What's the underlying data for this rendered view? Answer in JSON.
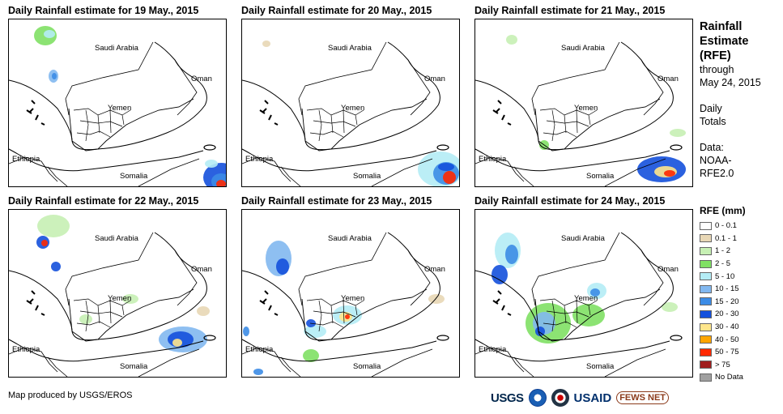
{
  "panels": [
    {
      "title": "Daily Rainfall estimate for 19 May., 2015"
    },
    {
      "title": "Daily Rainfall estimate for 20 May., 2015"
    },
    {
      "title": "Daily Rainfall estimate for 21 May., 2015"
    },
    {
      "title": "Daily Rainfall estimate for 22 May., 2015"
    },
    {
      "title": "Daily Rainfall estimate for 23 May., 2015"
    },
    {
      "title": "Daily Rainfall estimate for 24 May., 2015"
    }
  ],
  "map_labels": {
    "saudi": "Saudi Arabia",
    "oman": "Oman",
    "yemen": "Yemen",
    "ethiopia": "Ethiopia",
    "somalia": "Somalia"
  },
  "sidebar": {
    "title_line1": "Rainfall",
    "title_line2": "Estimate",
    "title_line3": "(RFE)",
    "through": "through",
    "date": "May 24, 2015",
    "daily": "Daily",
    "totals": "Totals",
    "data_label": "Data:",
    "data_src1": "NOAA-",
    "data_src2": "RFE2.0"
  },
  "legend": {
    "title": "RFE (mm)",
    "items": [
      {
        "label": "0 - 0.1",
        "color": "#ffffff"
      },
      {
        "label": "0.1 - 1",
        "color": "#e8d7b5"
      },
      {
        "label": "1 - 2",
        "color": "#c7f0b4"
      },
      {
        "label": "2 - 5",
        "color": "#80e064"
      },
      {
        "label": "5 - 10",
        "color": "#b4ecf5"
      },
      {
        "label": "10 - 15",
        "color": "#82b8f0"
      },
      {
        "label": "15 - 20",
        "color": "#3c8ce6"
      },
      {
        "label": "20 - 30",
        "color": "#1450dc"
      },
      {
        "label": "30 - 40",
        "color": "#ffe68c"
      },
      {
        "label": "40 - 50",
        "color": "#ffa500"
      },
      {
        "label": "50 - 75",
        "color": "#ff2800"
      },
      {
        "label": "> 75",
        "color": "#a01e1e"
      },
      {
        "label": "No Data",
        "color": "#a0a0a0"
      }
    ]
  },
  "credit": "Map produced by USGS/EROS",
  "logos": {
    "usgs": "USGS",
    "usaid": "USAID",
    "fews": "FEWS NET"
  }
}
